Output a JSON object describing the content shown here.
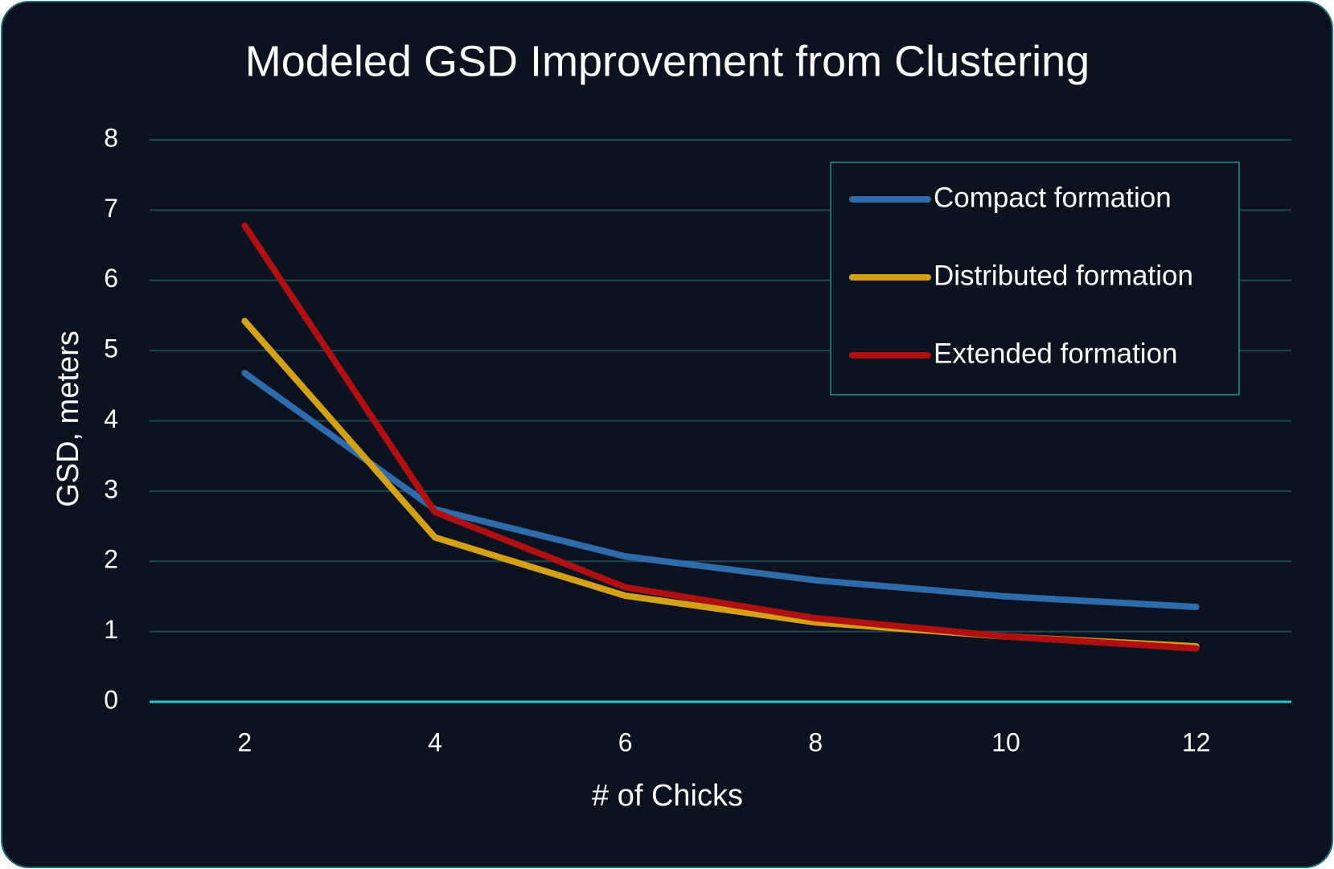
{
  "chart_data": {
    "type": "line",
    "title": "Modeled GSD Improvement from Clustering",
    "x_label": "# of Chicks",
    "y_label": "GSD, meters",
    "categories": [
      "2",
      "4",
      "6",
      "8",
      "10",
      "12"
    ],
    "series": [
      {
        "name": "Compact formation",
        "color": "#2e6bab",
        "values": [
          4.68,
          2.74,
          2.07,
          1.73,
          1.5,
          1.35
        ]
      },
      {
        "name": "Distributed formation",
        "color": "#d4a017",
        "values": [
          5.42,
          2.34,
          1.51,
          1.13,
          0.93,
          0.79
        ]
      },
      {
        "name": "Extended formation",
        "color": "#b01010",
        "values": [
          6.78,
          2.7,
          1.63,
          1.19,
          0.93,
          0.76
        ]
      }
    ],
    "ylim": [
      0,
      8
    ],
    "yticks": [
      0,
      1,
      2,
      3,
      4,
      5,
      6,
      7,
      8
    ],
    "grid": true,
    "legend": "top-right"
  }
}
